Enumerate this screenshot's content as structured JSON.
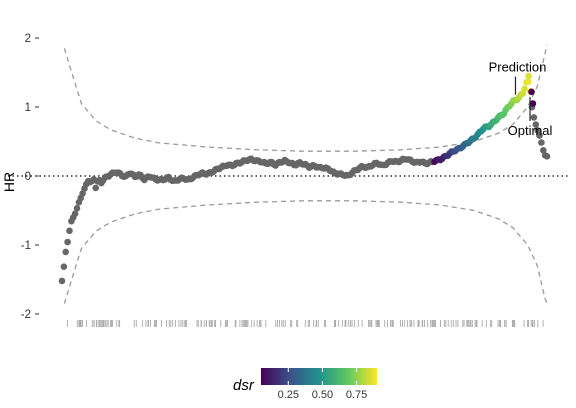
{
  "chart_data": {
    "type": "scatter",
    "title": "",
    "xlabel": "",
    "ylabel": "HR",
    "ylim": [
      -2.2,
      2.2
    ],
    "xlim": [
      0,
      1
    ],
    "y_ticks": [
      "-2",
      "-1",
      "0",
      "1",
      "2"
    ],
    "grid": false,
    "reference_line": {
      "y": 0,
      "style": "dotted"
    },
    "colors": {
      "points": "#666666",
      "band": "#999999",
      "rug": "#aaaaaa",
      "annot_line": "#222222"
    },
    "annotations": [
      {
        "label": "Prediction",
        "x": 0.935,
        "y": 1.18
      },
      {
        "label": "Optimal",
        "x": 0.965,
        "y": 0.97
      }
    ],
    "curve": [
      [
        0.0,
        -1.52
      ],
      [
        0.004,
        -1.32
      ],
      [
        0.008,
        -1.08
      ],
      [
        0.012,
        -0.93
      ],
      [
        0.016,
        -0.78
      ],
      [
        0.02,
        -0.64
      ],
      [
        0.024,
        -0.58
      ],
      [
        0.03,
        -0.5
      ],
      [
        0.035,
        -0.38
      ],
      [
        0.04,
        -0.28
      ],
      [
        0.045,
        -0.22
      ],
      [
        0.05,
        -0.12
      ],
      [
        0.055,
        -0.05
      ],
      [
        0.06,
        -0.12
      ],
      [
        0.065,
        -0.02
      ],
      [
        0.07,
        -0.18
      ],
      [
        0.075,
        -0.04
      ],
      [
        0.08,
        -0.1
      ],
      [
        0.09,
        -0.02
      ],
      [
        0.1,
        0.02
      ],
      [
        0.11,
        0.06
      ],
      [
        0.12,
        0.03
      ],
      [
        0.13,
        -0.02
      ],
      [
        0.14,
        0.05
      ],
      [
        0.15,
        -0.01
      ],
      [
        0.16,
        0.02
      ],
      [
        0.17,
        -0.05
      ],
      [
        0.18,
        0.0
      ],
      [
        0.19,
        -0.04
      ],
      [
        0.2,
        -0.06
      ],
      [
        0.21,
        -0.05
      ],
      [
        0.22,
        -0.02
      ],
      [
        0.23,
        -0.08
      ],
      [
        0.24,
        -0.05
      ],
      [
        0.25,
        -0.03
      ],
      [
        0.26,
        -0.06
      ],
      [
        0.27,
        -0.02
      ],
      [
        0.28,
        0.02
      ],
      [
        0.29,
        0.04
      ],
      [
        0.3,
        0.03
      ],
      [
        0.31,
        0.06
      ],
      [
        0.32,
        0.1
      ],
      [
        0.33,
        0.13
      ],
      [
        0.34,
        0.16
      ],
      [
        0.35,
        0.15
      ],
      [
        0.36,
        0.18
      ],
      [
        0.37,
        0.2
      ],
      [
        0.38,
        0.23
      ],
      [
        0.39,
        0.24
      ],
      [
        0.4,
        0.22
      ],
      [
        0.41,
        0.21
      ],
      [
        0.42,
        0.18
      ],
      [
        0.43,
        0.2
      ],
      [
        0.44,
        0.16
      ],
      [
        0.45,
        0.2
      ],
      [
        0.46,
        0.22
      ],
      [
        0.47,
        0.19
      ],
      [
        0.48,
        0.16
      ],
      [
        0.49,
        0.19
      ],
      [
        0.5,
        0.17
      ],
      [
        0.51,
        0.13
      ],
      [
        0.52,
        0.15
      ],
      [
        0.53,
        0.12
      ],
      [
        0.54,
        0.12
      ],
      [
        0.55,
        0.1
      ],
      [
        0.56,
        0.05
      ],
      [
        0.57,
        0.03
      ],
      [
        0.58,
        0.02
      ],
      [
        0.59,
        0.0
      ],
      [
        0.6,
        0.06
      ],
      [
        0.61,
        0.1
      ],
      [
        0.62,
        0.14
      ],
      [
        0.63,
        0.12
      ],
      [
        0.64,
        0.16
      ],
      [
        0.65,
        0.19
      ],
      [
        0.66,
        0.15
      ],
      [
        0.67,
        0.18
      ],
      [
        0.68,
        0.22
      ],
      [
        0.69,
        0.2
      ],
      [
        0.7,
        0.23
      ],
      [
        0.71,
        0.25
      ],
      [
        0.72,
        0.22
      ],
      [
        0.73,
        0.19
      ],
      [
        0.74,
        0.21
      ],
      [
        0.75,
        0.18
      ],
      [
        0.76,
        0.2
      ],
      [
        0.77,
        0.22
      ],
      [
        0.78,
        0.24
      ],
      [
        0.79,
        0.28
      ],
      [
        0.8,
        0.33
      ],
      [
        0.81,
        0.37
      ],
      [
        0.82,
        0.4
      ],
      [
        0.83,
        0.45
      ],
      [
        0.84,
        0.5
      ],
      [
        0.85,
        0.55
      ],
      [
        0.86,
        0.62
      ],
      [
        0.87,
        0.7
      ],
      [
        0.88,
        0.72
      ],
      [
        0.89,
        0.78
      ],
      [
        0.9,
        0.85
      ],
      [
        0.91,
        0.9
      ],
      [
        0.92,
        1.0
      ],
      [
        0.93,
        1.08
      ],
      [
        0.94,
        1.12
      ],
      [
        0.95,
        1.2
      ],
      [
        0.955,
        1.3
      ],
      [
        0.96,
        1.4
      ],
      [
        0.965,
        1.25
      ],
      [
        0.97,
        0.95
      ],
      [
        0.974,
        0.8
      ],
      [
        0.978,
        0.72
      ],
      [
        0.982,
        0.65
      ],
      [
        0.986,
        0.55
      ],
      [
        0.99,
        0.42
      ],
      [
        0.995,
        0.32
      ],
      [
        1.0,
        0.28
      ]
    ],
    "colored_range": [
      0.765,
      0.966
    ],
    "outliers": [
      {
        "x": 0.968,
        "y": 1.22,
        "dsr": 0.05
      },
      {
        "x": 0.971,
        "y": 1.05,
        "dsr": 0.02
      },
      {
        "x": 0.962,
        "y": 1.45,
        "dsr": 0.85
      }
    ],
    "ci_upper": [
      [
        0.005,
        1.85
      ],
      [
        0.02,
        1.5
      ],
      [
        0.04,
        1.05
      ],
      [
        0.07,
        0.8
      ],
      [
        0.1,
        0.67
      ],
      [
        0.15,
        0.55
      ],
      [
        0.2,
        0.48
      ],
      [
        0.3,
        0.42
      ],
      [
        0.4,
        0.38
      ],
      [
        0.5,
        0.36
      ],
      [
        0.6,
        0.36
      ],
      [
        0.7,
        0.38
      ],
      [
        0.78,
        0.42
      ],
      [
        0.85,
        0.5
      ],
      [
        0.9,
        0.62
      ],
      [
        0.93,
        0.75
      ],
      [
        0.96,
        1.0
      ],
      [
        0.98,
        1.3
      ],
      [
        0.995,
        1.75
      ],
      [
        1.0,
        1.9
      ]
    ],
    "ci_lower": [
      [
        0.005,
        -1.85
      ],
      [
        0.02,
        -1.5
      ],
      [
        0.04,
        -1.05
      ],
      [
        0.07,
        -0.8
      ],
      [
        0.1,
        -0.67
      ],
      [
        0.15,
        -0.55
      ],
      [
        0.2,
        -0.48
      ],
      [
        0.3,
        -0.42
      ],
      [
        0.4,
        -0.38
      ],
      [
        0.5,
        -0.36
      ],
      [
        0.6,
        -0.36
      ],
      [
        0.7,
        -0.38
      ],
      [
        0.78,
        -0.42
      ],
      [
        0.85,
        -0.5
      ],
      [
        0.9,
        -0.62
      ],
      [
        0.93,
        -0.75
      ],
      [
        0.96,
        -1.0
      ],
      [
        0.98,
        -1.3
      ],
      [
        0.995,
        -1.75
      ],
      [
        1.0,
        -1.85
      ]
    ],
    "rug_seed": 11,
    "legend": {
      "title": "dsr",
      "placement": "bottom",
      "labels": [
        "0.25",
        "0.50",
        "0.75"
      ],
      "label_values": [
        0.25,
        0.5,
        0.75
      ],
      "range": [
        0.05,
        0.9
      ],
      "palette": [
        "#440154",
        "#3b528b",
        "#21918c",
        "#5ec962",
        "#fde725"
      ]
    }
  }
}
